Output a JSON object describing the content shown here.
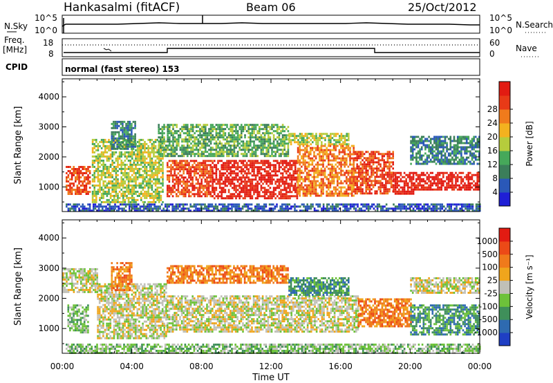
{
  "header": {
    "station": "Hankasalmi (fitACF)",
    "beam": "Beam 06",
    "date": "25/Oct/2012"
  },
  "strip": {
    "nsky_label": "N.Sky",
    "nsky_ticks": [
      "10^5",
      "10^0"
    ],
    "nsearch_label": "N.Search",
    "nsearch_ticks": [
      "10^5",
      "10^0"
    ],
    "freq_label": "Freq.",
    "freq_unit": "[MHz]",
    "freq_ticks": [
      "18",
      "8"
    ],
    "nave_label": "Nave",
    "nave_ticks": [
      "60",
      "0"
    ],
    "cpid_label": "CPID",
    "cpid_text": "normal (fast stereo) 153"
  },
  "chart_data": [
    {
      "type": "heatmap",
      "panel": "power",
      "ylabel": "Slant Range [km]",
      "yticks": [
        1000,
        2000,
        3000,
        4000
      ],
      "ylim": [
        180,
        4600
      ],
      "xlim": [
        0,
        24
      ],
      "colorbar": {
        "label": "Power [dB]",
        "ticks": [
          "4",
          "8",
          "12",
          "16",
          "20",
          "24",
          "28"
        ],
        "colors": [
          "#1f1fd6",
          "#2a58b8",
          "#3b7e5a",
          "#46a85a",
          "#b6cc3c",
          "#f3b21f",
          "#f07b1c",
          "#e83a17",
          "#e21b12"
        ]
      },
      "regions": [
        {
          "x0": 0.2,
          "x1": 1.6,
          "y0": 800,
          "y1": 1700,
          "level": 7
        },
        {
          "x0": 1.7,
          "x1": 5.8,
          "y0": 500,
          "y1": 2600,
          "level": 4
        },
        {
          "x0": 2.8,
          "x1": 4.2,
          "y0": 2300,
          "y1": 3200,
          "level": 2
        },
        {
          "x0": 6.0,
          "x1": 8.6,
          "y0": 700,
          "y1": 1900,
          "level": 7
        },
        {
          "x0": 8.6,
          "x1": 13.5,
          "y0": 600,
          "y1": 1900,
          "level": 8
        },
        {
          "x0": 13.5,
          "x1": 16.8,
          "y0": 700,
          "y1": 2400,
          "level": 6
        },
        {
          "x0": 13.0,
          "x1": 16.5,
          "y0": 2400,
          "y1": 2800,
          "level": 4
        },
        {
          "x0": 16.8,
          "x1": 19.0,
          "y0": 800,
          "y1": 2200,
          "level": 7
        },
        {
          "x0": 19.0,
          "x1": 20.2,
          "y0": 800,
          "y1": 1500,
          "level": 8
        },
        {
          "x0": 20.2,
          "x1": 24.0,
          "y0": 900,
          "y1": 1500,
          "level": 8
        },
        {
          "x0": 20.0,
          "x1": 24.0,
          "y0": 1800,
          "y1": 2700,
          "level": 2
        },
        {
          "x0": 5.5,
          "x1": 13.0,
          "y0": 2000,
          "y1": 3100,
          "level": 3
        },
        {
          "x0": 0.2,
          "x1": 24.0,
          "y0": 200,
          "y1": 450,
          "level": 1
        }
      ]
    },
    {
      "type": "heatmap",
      "panel": "velocity",
      "ylabel": "Slant Range [km]",
      "yticks": [
        1000,
        2000,
        3000,
        4000
      ],
      "ylim": [
        180,
        4600
      ],
      "xlim": [
        0,
        24
      ],
      "xticks": [
        "00:00",
        "04:00",
        "08:00",
        "12:00",
        "16:00",
        "20:00",
        "00:00"
      ],
      "xlabel": "Time UT",
      "colorbar": {
        "label": "Velocity [m s⁻¹]",
        "ticks": [
          "1000",
          "500",
          "100",
          "25",
          "-25",
          "-100",
          "-500",
          "-1000"
        ],
        "colors": [
          "#1f3fc4",
          "#2e6ab0",
          "#3f8f5a",
          "#6dc23a",
          "#c0c0b8",
          "#f0a51c",
          "#f07a1b",
          "#ec4a17",
          "#e21b12"
        ]
      },
      "regions": [
        {
          "x0": 2.0,
          "x1": 6.0,
          "y0": 700,
          "y1": 2500,
          "level": 4
        },
        {
          "x0": 6.0,
          "x1": 17.0,
          "y0": 900,
          "y1": 2100,
          "level": 4
        },
        {
          "x0": 0.3,
          "x1": 1.5,
          "y0": 900,
          "y1": 1800,
          "level": 3
        },
        {
          "x0": 0.0,
          "x1": 2.0,
          "y0": 2200,
          "y1": 3000,
          "level": 4
        },
        {
          "x0": 2.8,
          "x1": 4.0,
          "y0": 2300,
          "y1": 3200,
          "level": 6
        },
        {
          "x0": 6.0,
          "x1": 13.0,
          "y0": 2500,
          "y1": 3100,
          "level": 6
        },
        {
          "x0": 13.0,
          "x1": 16.5,
          "y0": 2100,
          "y1": 2700,
          "level": 2
        },
        {
          "x0": 17.0,
          "x1": 20.0,
          "y0": 1100,
          "y1": 2000,
          "level": 6
        },
        {
          "x0": 20.0,
          "x1": 24.0,
          "y0": 800,
          "y1": 1800,
          "level": 2
        },
        {
          "x0": 20.0,
          "x1": 24.0,
          "y0": 2200,
          "y1": 2700,
          "level": 4
        },
        {
          "x0": 0.2,
          "x1": 24.0,
          "y0": 200,
          "y1": 500,
          "level": 3
        }
      ]
    }
  ]
}
